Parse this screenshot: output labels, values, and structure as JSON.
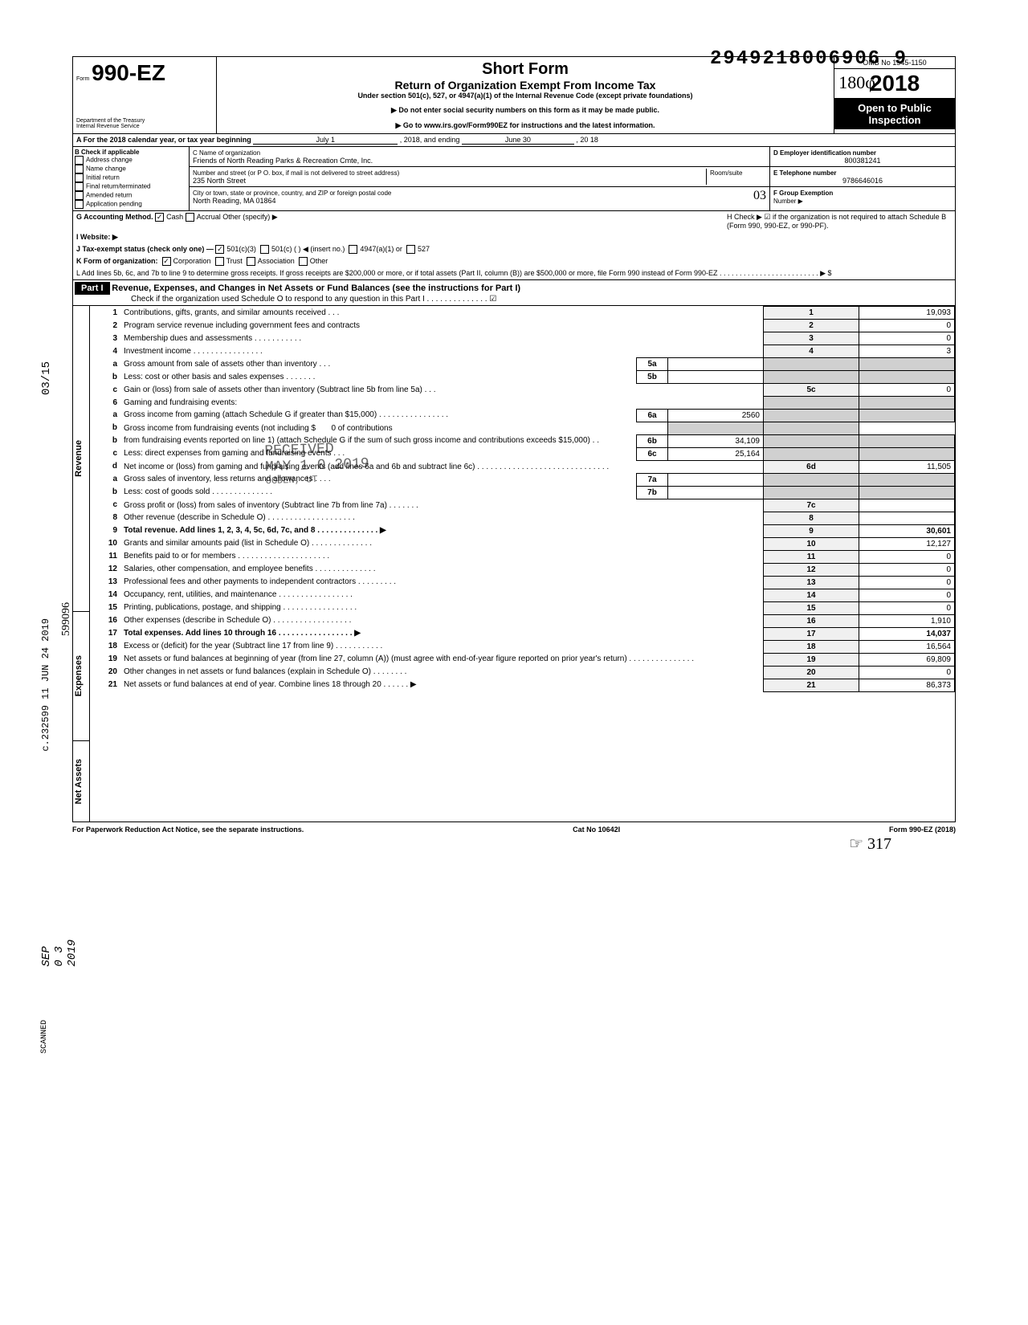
{
  "top_stamp": "2949218006906 9",
  "handwritten_top": "180φ",
  "form": {
    "number_prefix": "Form",
    "number": "990-EZ",
    "dept": "Department of the Treasury",
    "irs": "Internal Revenue Service",
    "title": "Short Form",
    "subtitle": "Return of Organization Exempt From Income Tax",
    "under": "Under section 501(c), 527, or 4947(a)(1) of the Internal Revenue Code (except private foundations)",
    "note1": "▶ Do not enter social security numbers on this form as it may be made public.",
    "note2": "▶ Go to www.irs.gov/Form990EZ for instructions and the latest information.",
    "omb": "OMB No 1545-1150",
    "year": "2018",
    "open": "Open to Public Inspection"
  },
  "row_a": {
    "label": "A For the 2018 calendar year, or tax year beginning",
    "begin": "July 1",
    "mid": ", 2018, and ending",
    "end_month": "June 30",
    "end_year": ", 20   18"
  },
  "col_b": {
    "header": "B Check if applicable",
    "items": [
      "Address change",
      "Name change",
      "Initial return",
      "Final return/terminated",
      "Amended return",
      "Application pending"
    ]
  },
  "col_c": {
    "name_label": "C Name of organization",
    "name": "Friends of North Reading Parks & Recreation Cmte, Inc.",
    "addr_label": "Number and street (or P O. box, if mail is not delivered to street address)",
    "room_label": "Room/suite",
    "addr": "235 North Street",
    "city_label": "City or town, state or province, country, and ZIP or foreign postal code",
    "city": "North Reading, MA 01864"
  },
  "col_d": {
    "ein_label": "D Employer identification number",
    "ein": "800381241",
    "tel_label": "E Telephone number",
    "tel": "9786646016",
    "group_label": "F Group Exemption",
    "group_sub": "Number ▶"
  },
  "row_g": "G Accounting Method.",
  "row_g_opts": [
    "Cash",
    "Accrual",
    "Other (specify) ▶"
  ],
  "row_g_checked": "Cash",
  "row_h": "H Check ▶ ☑ if the organization is not required to attach Schedule B (Form 990, 990-EZ, or 990-PF).",
  "row_i": "I Website: ▶",
  "row_j": "J Tax-exempt status (check only one) —",
  "row_j_opts": [
    "501(c)(3)",
    "501(c) (         ) ◀ (insert no.)",
    "4947(a)(1) or",
    "527"
  ],
  "row_k": "K Form of organization:",
  "row_k_opts": [
    "Corporation",
    "Trust",
    "Association",
    "Other"
  ],
  "row_k_checked": "Corporation",
  "row_l": "L Add lines 5b, 6c, and 7b to line 9 to determine gross receipts. If gross receipts are $200,000 or more, or if total assets (Part II, column (B)) are $500,000 or more, file Form 990 instead of Form 990-EZ .  .  .  .  .  .  .  .  .  .  .  .  .  .  .  .  .  .  .  .  .  .  .  .  .  ▶  $",
  "part1": {
    "header": "Part I",
    "title": "Revenue, Expenses, and Changes in Net Assets or Fund Balances (see the instructions for Part I)",
    "check_note": "Check if the organization used Schedule O to respond to any question in this Part I .  .  .  .  .  .  .  .  .  .  .  .  .  . ☑"
  },
  "stamp_received": "RECEIVED",
  "stamp_date": "MAY 1 0 2019",
  "stamp_ogden": "OGDEN, UT",
  "side_stamp1": "03/15",
  "side_stamp2": "c.232599 11 JUN 24 2019",
  "side_stamp3": "599096",
  "side_stamp4": "SEP 0 3 2019",
  "side_stamp5": "SCANNED",
  "lines": {
    "1": {
      "desc": "Contributions, gifts, grants, and similar amounts received .  .  .",
      "val": "19,093"
    },
    "2": {
      "desc": "Program service revenue including government fees and contracts",
      "val": "0"
    },
    "3": {
      "desc": "Membership dues and assessments .  .  .  .  .  .  .  .  .  .  .",
      "val": "0"
    },
    "4": {
      "desc": "Investment income  .  .  .  .  .  .  .  .  .  .  .  .  .  .  .  .",
      "val": "3"
    },
    "5a": {
      "desc": "Gross amount from sale of assets other than inventory  .  .  .",
      "sub": "5a",
      "subval": ""
    },
    "5b": {
      "desc": "Less: cost or other basis and sales expenses .  .  .  .  .  .  .",
      "sub": "5b",
      "subval": ""
    },
    "5c": {
      "desc": "Gain or (loss) from sale of assets other than inventory (Subtract line 5b from line 5a) .  .  .",
      "val": "0"
    },
    "6": {
      "desc": "Gaming and fundraising events:"
    },
    "6a": {
      "desc": "Gross income from gaming (attach Schedule G if greater than $15,000) .  .  .  .  .  .  .  .  .  .  .  .  .  .  .  .",
      "sub": "6a",
      "subval": "2560"
    },
    "6b_intro": "Gross income from fundraising events (not including $",
    "6b_contrib": "0 of contributions",
    "6b": {
      "desc": "from fundraising events reported on line 1) (attach Schedule G if the sum of such gross income and contributions exceeds $15,000) .  .",
      "sub": "6b",
      "subval": "34,109"
    },
    "6c": {
      "desc": "Less: direct expenses from gaming and fundraising events  .  .  .",
      "sub": "6c",
      "subval": "25,164"
    },
    "6d": {
      "desc": "Net income or (loss) from gaming and fundraising events (add lines 6a and 6b and subtract line 6c)  .  .  .  .  .  .  .  .  .  .  .  .  .  .  .  .  .  .  .  .  .  .  .  .  .  .  .  .  .  .",
      "val": "11,505"
    },
    "7a": {
      "desc": "Gross sales of inventory, less returns and allowances .  .  .  .",
      "sub": "7a",
      "subval": ""
    },
    "7b": {
      "desc": "Less: cost of goods sold  .  .  .  .  .  .  .  .  .  .  .  .  .  .",
      "sub": "7b",
      "subval": ""
    },
    "7c": {
      "desc": "Gross profit or (loss) from sales of inventory (Subtract line 7b from line 7a) .  .  .  .  .  .  .",
      "val": ""
    },
    "8": {
      "desc": "Other revenue (describe in Schedule O) .  .  .  .  .  .  .  .  .  .  .  .  .  .  .  .  .  .  .  .",
      "val": ""
    },
    "9": {
      "desc": "Total revenue. Add lines 1, 2, 3, 4, 5c, 6d, 7c, and 8  .  .  .  .  .  .  .  .  .  .  .  .  .  . ▶",
      "val": "30,601",
      "bold": true
    },
    "10": {
      "desc": "Grants and similar amounts paid (list in Schedule O)  .  .  .  .  .  .  .  .  .  .  .  .  .  .",
      "val": "12,127"
    },
    "11": {
      "desc": "Benefits paid to or for members  .  .  .  .  .  .  .  .  .  .  .  .  .  .  .  .  .  .  .  .  .",
      "val": "0"
    },
    "12": {
      "desc": "Salaries, other compensation, and employee benefits .  .  .  .  .  .  .  .  .  .  .  .  .  .",
      "val": "0"
    },
    "13": {
      "desc": "Professional fees and other payments to independent contractors .  .  .  .  .  .  .  .  .",
      "val": "0"
    },
    "14": {
      "desc": "Occupancy, rent, utilities, and maintenance  .  .  .  .  .  .  .  .  .  .  .  .  .  .  .  .  .",
      "val": "0"
    },
    "15": {
      "desc": "Printing, publications, postage, and shipping .  .  .  .  .  .  .  .  .  .  .  .  .  .  .  .  .",
      "val": "0"
    },
    "16": {
      "desc": "Other expenses (describe in Schedule O) .  .  .  .  .  .  .  .  .  .  .  .  .  .  .  .  .  .",
      "val": "1,910"
    },
    "17": {
      "desc": "Total expenses. Add lines 10 through 16  .  .  .  .  .  .  .  .  .  .  .  .  .  .  .  .  . ▶",
      "val": "14,037",
      "bold": true
    },
    "18": {
      "desc": "Excess or (deficit) for the year (Subtract line 17 from line 9)  .  .  .  .  .  .  .  .  .  .  .",
      "val": "16,564"
    },
    "19": {
      "desc": "Net assets or fund balances at beginning of year (from line 27, column (A)) (must agree with end-of-year figure reported on prior year's return)  .  .  .  .  .  .  .  .  .  .  .  .  .  .  .",
      "val": "69,809"
    },
    "20": {
      "desc": "Other changes in net assets or fund balances (explain in Schedule O) .  .  .  .  .  .  .  .",
      "val": "0"
    },
    "21": {
      "desc": "Net assets or fund balances at end of year. Combine lines 18 through 20  .  .  .  .  .  . ▶",
      "val": "86,373"
    }
  },
  "side_labels": {
    "revenue": "Revenue",
    "expenses": "Expenses",
    "netassets": "Net Assets"
  },
  "footer": {
    "left": "For Paperwork Reduction Act Notice, see the separate instructions.",
    "mid": "Cat No 10642I",
    "right": "Form 990-EZ (2018)"
  },
  "initials": "317"
}
